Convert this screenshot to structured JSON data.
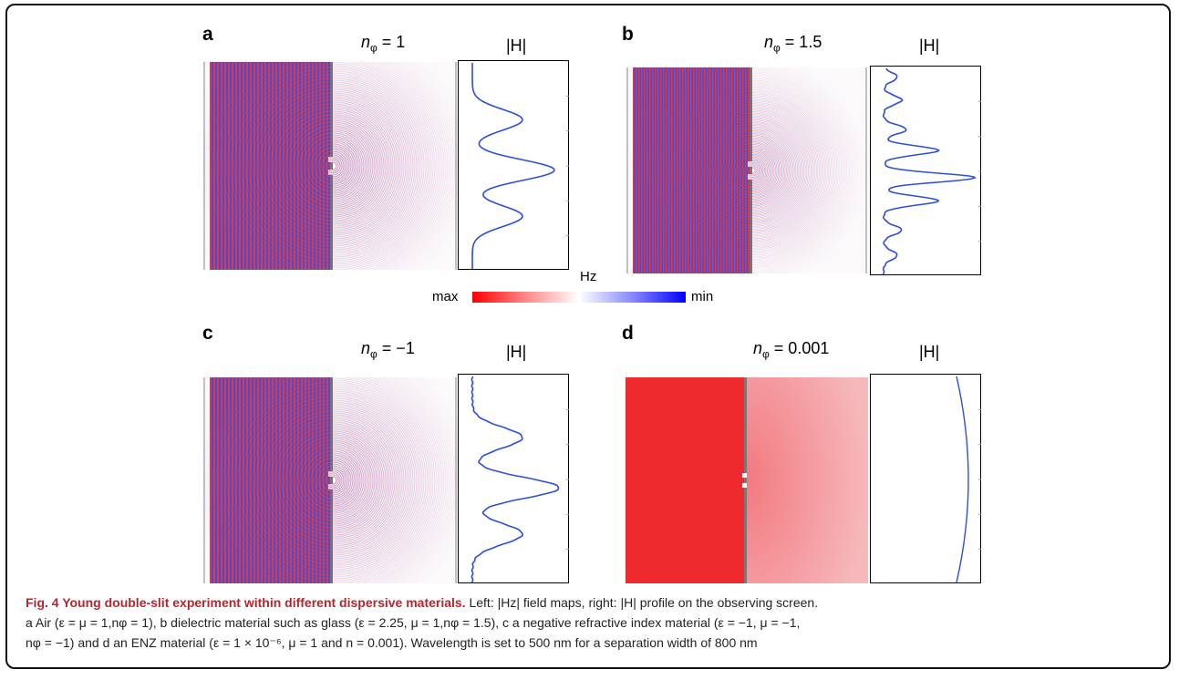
{
  "panels": [
    {
      "label": "a",
      "title_prefix": "n",
      "title_sub": "φ",
      "title_value": " = 1",
      "profile_title": "|H|"
    },
    {
      "label": "b",
      "title_prefix": "n",
      "title_sub": "φ",
      "title_value": " = 1.5",
      "profile_title": "|H|"
    },
    {
      "label": "c",
      "title_prefix": "n",
      "title_sub": "φ",
      "title_value": " = −1",
      "profile_title": "|H|"
    },
    {
      "label": "d",
      "title_prefix": "n",
      "title_sub": "φ",
      "title_value": " = 0.001",
      "profile_title": "|H|"
    }
  ],
  "colorbar": {
    "title": "Hz",
    "left_label": "max",
    "right_label": "min",
    "colors": [
      "#ff0000",
      "#ffffff",
      "#0000ff"
    ]
  },
  "caption": {
    "title": "Fig. 4 Young double-slit experiment within different dispersive materials.",
    "line1": " Left: |Hz| field maps, right: |H| profile on the observing screen.",
    "line2": "a Air (ε = μ = 1,nφ = 1), b dielectric material such as glass (ε = 2.25, μ = 1,nφ = 1.5), c a negative refractive index material (ε = −1, μ = −1,",
    "line3": "nφ = −1) and d an ENZ material (ε = 1 × 10⁻⁶, μ = 1 and n = 0.001). Wavelength is set to 500 nm for a separation width of 800 nm"
  },
  "accent_color": "#b4262c"
}
